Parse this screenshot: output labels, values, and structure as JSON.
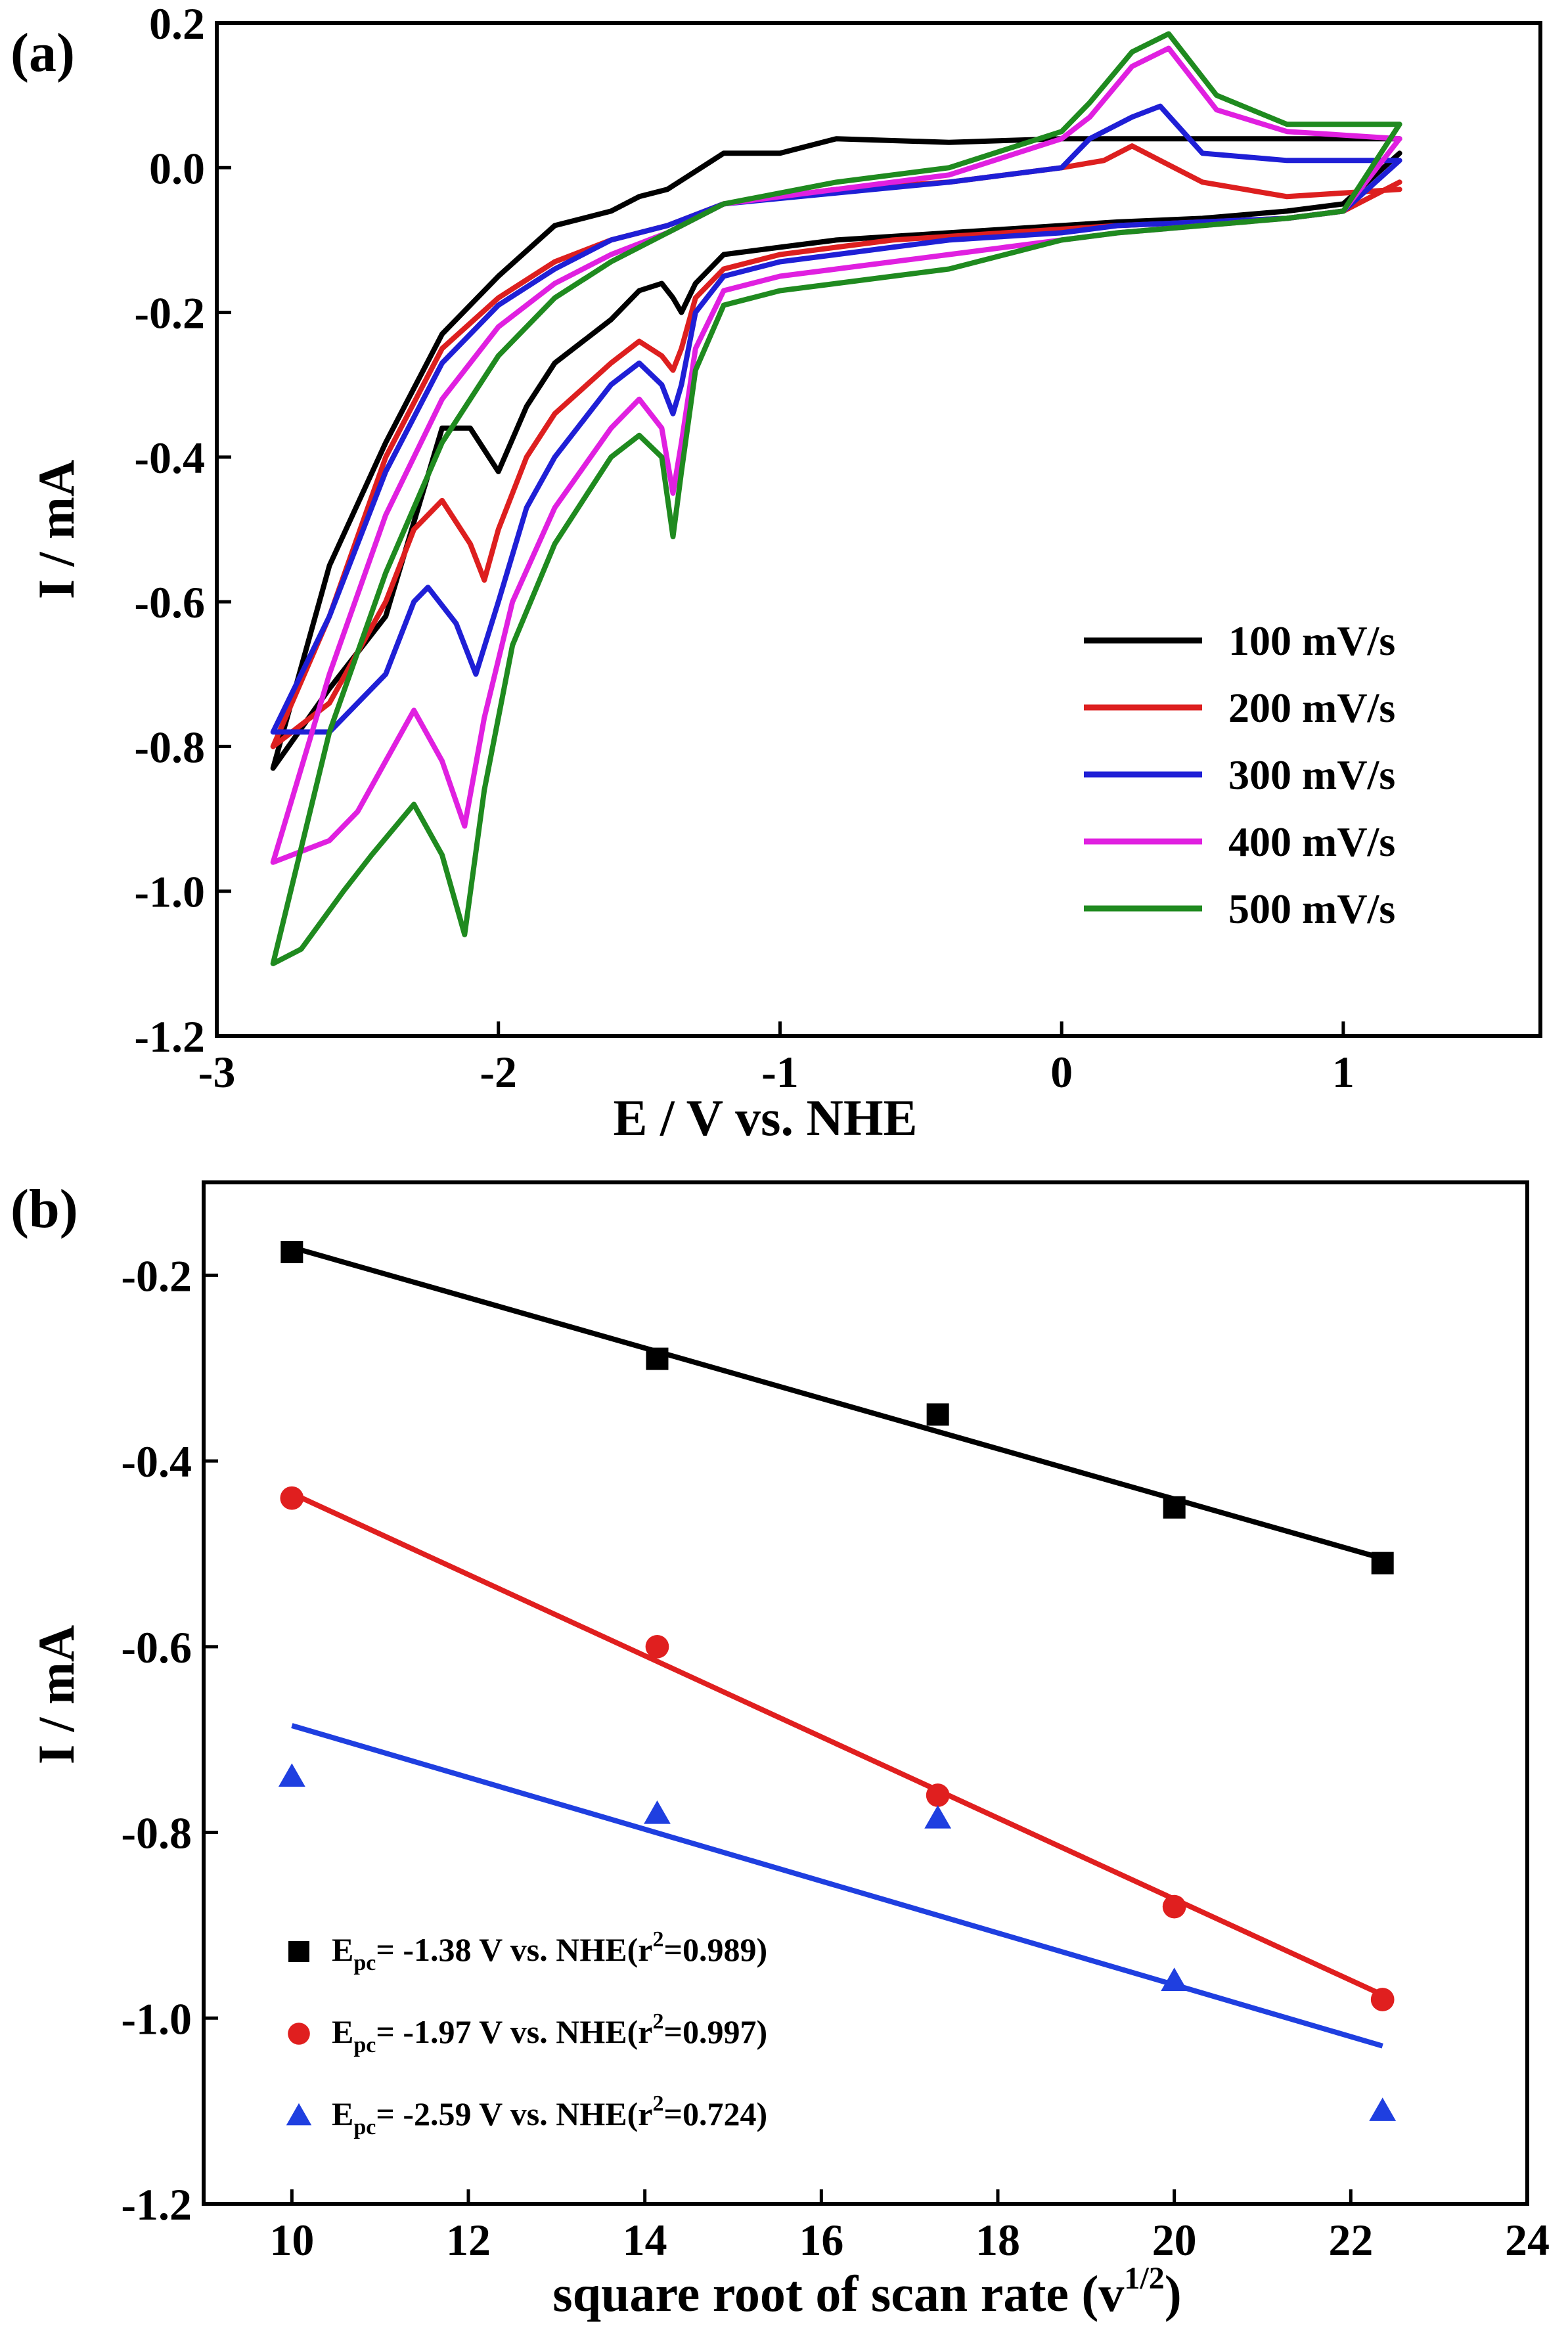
{
  "chart_data": [
    {
      "panel_label": "(a)",
      "type": "line",
      "xlabel": "E / V vs. NHE",
      "ylabel": "I / mA",
      "xlim": [
        -3,
        1.7
      ],
      "ylim": [
        -1.2,
        0.2
      ],
      "xticks": [
        -3,
        -2,
        -1,
        0,
        1
      ],
      "xtick_labels": [
        "-3",
        "-2",
        "-1",
        "0",
        "1"
      ],
      "yticks": [
        -1.2,
        -1.0,
        -0.8,
        -0.6,
        -0.4,
        -0.2,
        0.0,
        0.2
      ],
      "ytick_labels": [
        "-1.2",
        "-1.0",
        "-0.8",
        "-0.6",
        "-0.4",
        "-0.2",
        "0.0",
        "0.2"
      ],
      "grid": false,
      "legend_position": "bottom-right",
      "series": [
        {
          "name": "100 mV/s",
          "color": "#000000",
          "x": [
            1.2,
            0.8,
            0.4,
            0.0,
            -0.4,
            -0.8,
            -1.0,
            -1.2,
            -1.4,
            -1.5,
            -1.6,
            -1.8,
            -2.0,
            -2.2,
            -2.4,
            -2.6,
            -2.8,
            -2.6,
            -2.4,
            -2.2,
            -2.1,
            -2.0,
            -1.9,
            -1.8,
            -1.6,
            -1.5,
            -1.42,
            -1.38,
            -1.35,
            -1.3,
            -1.2,
            -1.0,
            -0.8,
            -0.6,
            -0.4,
            -0.2,
            0.0,
            0.2,
            0.5,
            0.8,
            1.0,
            1.2
          ],
          "y": [
            0.04,
            0.04,
            0.04,
            0.04,
            0.035,
            0.04,
            0.02,
            0.02,
            -0.03,
            -0.04,
            -0.06,
            -0.08,
            -0.15,
            -0.23,
            -0.38,
            -0.55,
            -0.83,
            -0.72,
            -0.62,
            -0.36,
            -0.36,
            -0.42,
            -0.33,
            -0.27,
            -0.21,
            -0.17,
            -0.16,
            -0.18,
            -0.2,
            -0.16,
            -0.12,
            -0.11,
            -0.1,
            -0.095,
            -0.09,
            -0.085,
            -0.08,
            -0.075,
            -0.07,
            -0.06,
            -0.05,
            0.02
          ]
        },
        {
          "name": "200 mV/s",
          "color": "#dd1f1f",
          "x": [
            1.2,
            0.8,
            0.5,
            0.35,
            0.25,
            0.15,
            0.0,
            -0.4,
            -0.8,
            -1.2,
            -1.4,
            -1.6,
            -1.8,
            -2.0,
            -2.2,
            -2.4,
            -2.6,
            -2.8,
            -2.6,
            -2.4,
            -2.3,
            -2.2,
            -2.1,
            -2.05,
            -2.0,
            -1.9,
            -1.8,
            -1.6,
            -1.5,
            -1.42,
            -1.38,
            -1.35,
            -1.3,
            -1.2,
            -1.0,
            -0.8,
            -0.6,
            -0.4,
            -0.2,
            0.0,
            0.2,
            0.5,
            0.8,
            1.0,
            1.2
          ],
          "y": [
            -0.03,
            -0.04,
            -0.02,
            0.01,
            0.03,
            0.01,
            0.0,
            -0.02,
            -0.03,
            -0.05,
            -0.08,
            -0.1,
            -0.13,
            -0.18,
            -0.25,
            -0.4,
            -0.62,
            -0.8,
            -0.74,
            -0.6,
            -0.5,
            -0.46,
            -0.52,
            -0.57,
            -0.5,
            -0.4,
            -0.34,
            -0.27,
            -0.24,
            -0.26,
            -0.28,
            -0.25,
            -0.18,
            -0.14,
            -0.12,
            -0.11,
            -0.1,
            -0.095,
            -0.09,
            -0.085,
            -0.08,
            -0.075,
            -0.07,
            -0.06,
            -0.02
          ]
        },
        {
          "name": "300 mV/s",
          "color": "#1f1fd6",
          "x": [
            1.2,
            0.8,
            0.5,
            0.35,
            0.25,
            0.1,
            0.0,
            -0.4,
            -0.8,
            -1.2,
            -1.4,
            -1.6,
            -1.8,
            -2.0,
            -2.2,
            -2.4,
            -2.6,
            -2.8,
            -2.6,
            -2.4,
            -2.3,
            -2.25,
            -2.15,
            -2.08,
            -2.0,
            -1.9,
            -1.8,
            -1.6,
            -1.5,
            -1.42,
            -1.38,
            -1.35,
            -1.3,
            -1.2,
            -1.0,
            -0.8,
            -0.6,
            -0.4,
            -0.2,
            0.0,
            0.2,
            0.5,
            0.8,
            1.0,
            1.2
          ],
          "y": [
            0.01,
            0.01,
            0.02,
            0.085,
            0.07,
            0.04,
            0.0,
            -0.02,
            -0.035,
            -0.05,
            -0.08,
            -0.1,
            -0.14,
            -0.19,
            -0.27,
            -0.42,
            -0.62,
            -0.78,
            -0.78,
            -0.7,
            -0.6,
            -0.58,
            -0.63,
            -0.7,
            -0.6,
            -0.47,
            -0.4,
            -0.3,
            -0.27,
            -0.3,
            -0.34,
            -0.3,
            -0.2,
            -0.15,
            -0.13,
            -0.12,
            -0.11,
            -0.1,
            -0.095,
            -0.09,
            -0.08,
            -0.075,
            -0.07,
            -0.06,
            0.01
          ]
        },
        {
          "name": "400 mV/s",
          "color": "#e020e0",
          "x": [
            1.2,
            0.8,
            0.55,
            0.38,
            0.25,
            0.1,
            0.0,
            -0.4,
            -0.8,
            -1.2,
            -1.4,
            -1.6,
            -1.8,
            -2.0,
            -2.2,
            -2.4,
            -2.6,
            -2.8,
            -2.6,
            -2.5,
            -2.4,
            -2.3,
            -2.2,
            -2.12,
            -2.05,
            -1.95,
            -1.8,
            -1.6,
            -1.5,
            -1.42,
            -1.38,
            -1.35,
            -1.3,
            -1.2,
            -1.0,
            -0.8,
            -0.6,
            -0.4,
            -0.2,
            0.0,
            0.2,
            0.5,
            0.8,
            1.0,
            1.2
          ],
          "y": [
            0.04,
            0.05,
            0.08,
            0.165,
            0.14,
            0.07,
            0.04,
            -0.01,
            -0.03,
            -0.05,
            -0.09,
            -0.12,
            -0.16,
            -0.22,
            -0.32,
            -0.48,
            -0.7,
            -0.96,
            -0.93,
            -0.89,
            -0.82,
            -0.75,
            -0.82,
            -0.91,
            -0.76,
            -0.6,
            -0.47,
            -0.36,
            -0.32,
            -0.36,
            -0.45,
            -0.38,
            -0.25,
            -0.17,
            -0.15,
            -0.14,
            -0.13,
            -0.12,
            -0.11,
            -0.1,
            -0.09,
            -0.08,
            -0.07,
            -0.06,
            0.04
          ]
        },
        {
          "name": "500 mV/s",
          "color": "#1f8a1f",
          "x": [
            1.2,
            0.8,
            0.55,
            0.38,
            0.25,
            0.1,
            0.0,
            -0.4,
            -0.8,
            -1.2,
            -1.4,
            -1.6,
            -1.8,
            -2.0,
            -2.2,
            -2.4,
            -2.6,
            -2.8,
            -2.7,
            -2.55,
            -2.45,
            -2.3,
            -2.2,
            -2.12,
            -2.05,
            -1.95,
            -1.8,
            -1.6,
            -1.5,
            -1.42,
            -1.38,
            -1.35,
            -1.3,
            -1.2,
            -1.0,
            -0.8,
            -0.6,
            -0.4,
            -0.2,
            0.0,
            0.2,
            0.5,
            0.8,
            1.0,
            1.2
          ],
          "y": [
            0.06,
            0.06,
            0.1,
            0.185,
            0.16,
            0.09,
            0.05,
            0.0,
            -0.02,
            -0.05,
            -0.09,
            -0.13,
            -0.18,
            -0.26,
            -0.38,
            -0.56,
            -0.78,
            -1.1,
            -1.08,
            -1.0,
            -0.95,
            -0.88,
            -0.95,
            -1.06,
            -0.86,
            -0.66,
            -0.52,
            -0.4,
            -0.37,
            -0.4,
            -0.51,
            -0.42,
            -0.28,
            -0.19,
            -0.17,
            -0.16,
            -0.15,
            -0.14,
            -0.12,
            -0.1,
            -0.09,
            -0.08,
            -0.07,
            -0.06,
            0.06
          ]
        }
      ]
    },
    {
      "panel_label": "(b)",
      "type": "scatter",
      "xlabel": "square root of scan rate (v",
      "xlabel_sup": "1/2",
      "xlabel_end": ")",
      "ylabel": "I / mA",
      "xlim": [
        9,
        24
      ],
      "ylim": [
        -1.2,
        -0.1
      ],
      "xticks": [
        10,
        12,
        14,
        16,
        18,
        20,
        22,
        24
      ],
      "xtick_labels": [
        "10",
        "12",
        "14",
        "16",
        "18",
        "20",
        "22",
        "24"
      ],
      "yticks": [
        -1.2,
        -1.0,
        -0.8,
        -0.6,
        -0.4,
        -0.2
      ],
      "ytick_labels": [
        "-1.2",
        "-1.0",
        "-0.8",
        "-0.6",
        "-0.4",
        "-0.2"
      ],
      "grid": false,
      "legend_position": "bottom-left",
      "series": [
        {
          "legend_prefix": "E",
          "legend_sub": "pc",
          "legend_mid": "= -1.38 V vs. NHE(r",
          "legend_sup": "2",
          "legend_end": "=0.989)",
          "marker": "square",
          "color": "#000000",
          "x": [
            10,
            14.14,
            17.32,
            20,
            22.36
          ],
          "y": [
            -0.175,
            -0.29,
            -0.35,
            -0.45,
            -0.51
          ],
          "fit": [
            [
              10,
              -0.17
            ],
            [
              22.36,
              -0.505
            ]
          ]
        },
        {
          "legend_prefix": "E",
          "legend_sub": "pc",
          "legend_mid": "= -1.97 V vs. NHE(r",
          "legend_sup": "2",
          "legend_end": "=0.997)",
          "marker": "circle",
          "color": "#e01f1f",
          "x": [
            10,
            14.14,
            17.32,
            20,
            22.36
          ],
          "y": [
            -0.44,
            -0.6,
            -0.76,
            -0.88,
            -0.98
          ],
          "fit": [
            [
              10,
              -0.435
            ],
            [
              22.36,
              -0.975
            ]
          ]
        },
        {
          "legend_prefix": "E",
          "legend_sub": "pc",
          "legend_mid": "= -2.59 V vs. NHE(r",
          "legend_sup": "2",
          "legend_end": "=0.724)",
          "marker": "triangle",
          "color": "#1f3fe0",
          "x": [
            10,
            14.14,
            17.32,
            20,
            22.36
          ],
          "y": [
            -0.74,
            -0.78,
            -0.785,
            -0.96,
            -1.1
          ],
          "fit": [
            [
              10,
              -0.685
            ],
            [
              22.36,
              -1.03
            ]
          ]
        }
      ]
    }
  ]
}
